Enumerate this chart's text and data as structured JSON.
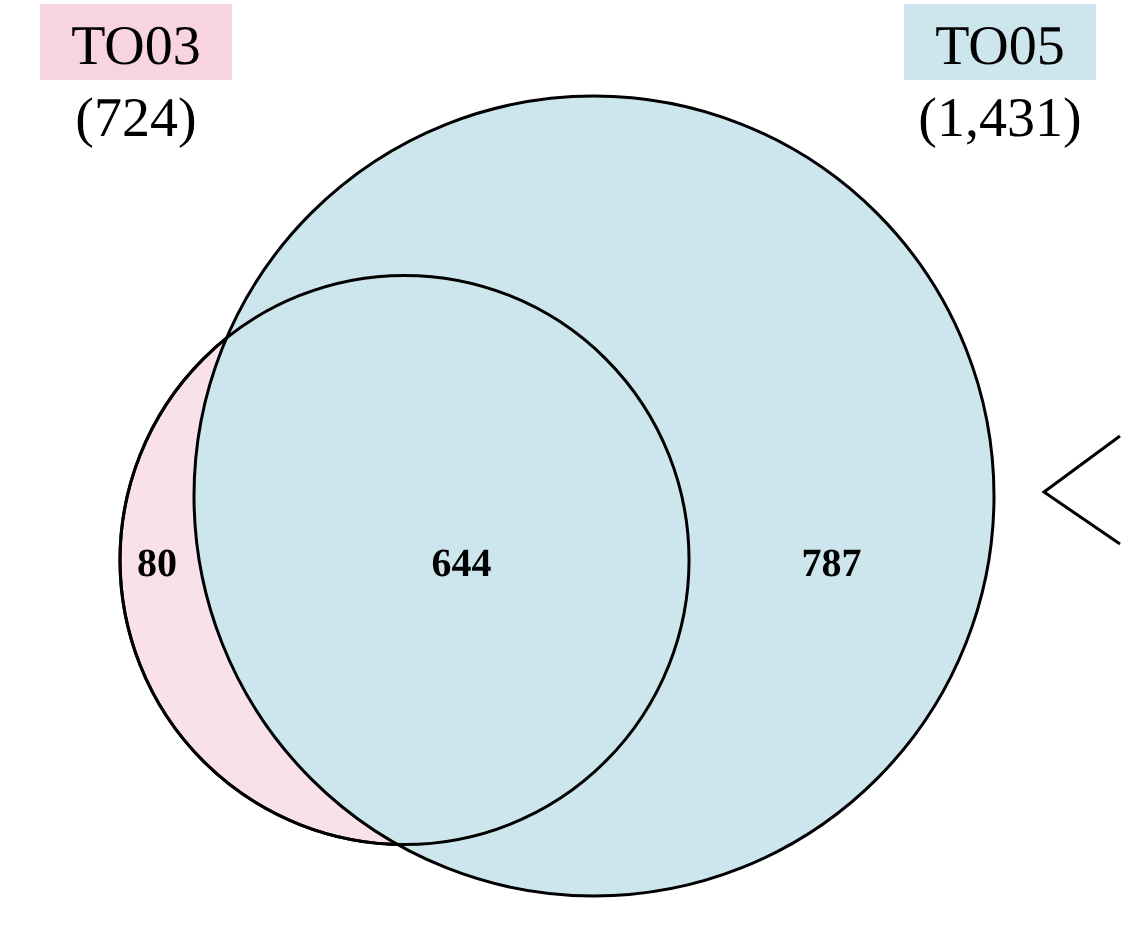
{
  "chart_data": {
    "type": "other",
    "categories": [
      "TO03",
      "TO05"
    ],
    "values": [
      724,
      1431
    ],
    "value_labels": [
      "(724)",
      "(1,431)"
    ],
    "colors": [
      "#f7d4df",
      "#cde6ee"
    ],
    "annotations": [
      "80",
      "644",
      "787"
    ]
  }
}
